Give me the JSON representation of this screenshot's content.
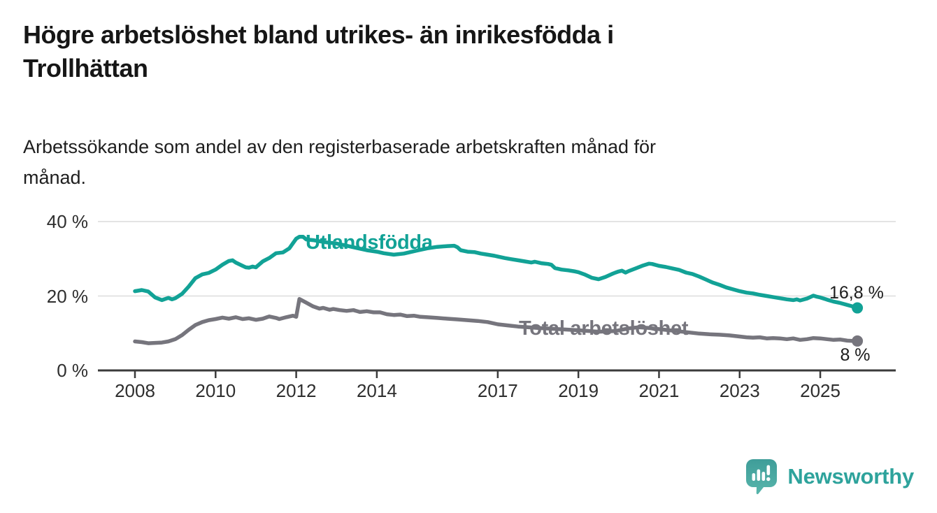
{
  "chart_data": {
    "type": "line",
    "title": "Högre arbetslöshet bland utrikes- än inrikesfödda i\nTrollhättan",
    "subtitle": "Arbetssökande som andel av den registerbaserade arbetskraften månad för\nmånad.",
    "unit": "%",
    "grid": "horizontal-only",
    "legend_position": "inline-labels-on-lines",
    "x_axis": {
      "ticks": [
        2008,
        2010,
        2012,
        2014,
        2017,
        2019,
        2021,
        2023,
        2025
      ],
      "range": [
        2007.1,
        2026.9
      ]
    },
    "y_axis": {
      "range": [
        0,
        42
      ],
      "ticks": [
        {
          "value": 0,
          "label": "0 %"
        },
        {
          "value": 20,
          "label": "20 %"
        },
        {
          "value": 40,
          "label": "40 %"
        }
      ]
    },
    "series": [
      {
        "name": "Utlandsfödda",
        "color": "#12A296",
        "end_label": "16,8 %",
        "points": [
          [
            2008.0,
            21.3
          ],
          [
            2008.17,
            21.6
          ],
          [
            2008.33,
            21.2
          ],
          [
            2008.5,
            19.6
          ],
          [
            2008.67,
            18.9
          ],
          [
            2008.83,
            19.5
          ],
          [
            2008.92,
            19.1
          ],
          [
            2009.0,
            19.4
          ],
          [
            2009.17,
            20.6
          ],
          [
            2009.33,
            22.5
          ],
          [
            2009.5,
            24.8
          ],
          [
            2009.67,
            25.8
          ],
          [
            2009.83,
            26.2
          ],
          [
            2010.0,
            27.1
          ],
          [
            2010.17,
            28.4
          ],
          [
            2010.33,
            29.4
          ],
          [
            2010.42,
            29.6
          ],
          [
            2010.5,
            29.0
          ],
          [
            2010.67,
            28.1
          ],
          [
            2010.75,
            27.7
          ],
          [
            2010.83,
            27.6
          ],
          [
            2010.92,
            27.9
          ],
          [
            2011.0,
            27.7
          ],
          [
            2011.17,
            29.3
          ],
          [
            2011.33,
            30.2
          ],
          [
            2011.5,
            31.5
          ],
          [
            2011.67,
            31.7
          ],
          [
            2011.83,
            32.8
          ],
          [
            2011.92,
            34.2
          ],
          [
            2012.0,
            35.4
          ],
          [
            2012.08,
            35.9
          ],
          [
            2012.17,
            35.9
          ],
          [
            2012.25,
            35.2
          ],
          [
            2012.42,
            35.0
          ],
          [
            2012.58,
            34.7
          ],
          [
            2012.75,
            34.4
          ],
          [
            2013.0,
            34.1
          ],
          [
            2013.25,
            33.5
          ],
          [
            2013.5,
            32.9
          ],
          [
            2013.75,
            32.3
          ],
          [
            2014.0,
            31.9
          ],
          [
            2014.17,
            31.5
          ],
          [
            2014.42,
            31.1
          ],
          [
            2014.67,
            31.4
          ],
          [
            2014.83,
            31.8
          ],
          [
            2015.0,
            32.2
          ],
          [
            2015.25,
            32.8
          ],
          [
            2015.5,
            33.2
          ],
          [
            2015.75,
            33.4
          ],
          [
            2015.92,
            33.5
          ],
          [
            2016.0,
            33.1
          ],
          [
            2016.08,
            32.3
          ],
          [
            2016.25,
            31.9
          ],
          [
            2016.42,
            31.8
          ],
          [
            2016.58,
            31.4
          ],
          [
            2016.75,
            31.1
          ],
          [
            2016.92,
            30.8
          ],
          [
            2017.0,
            30.6
          ],
          [
            2017.17,
            30.2
          ],
          [
            2017.33,
            29.9
          ],
          [
            2017.5,
            29.6
          ],
          [
            2017.67,
            29.3
          ],
          [
            2017.83,
            29.0
          ],
          [
            2017.92,
            29.2
          ],
          [
            2018.08,
            28.8
          ],
          [
            2018.25,
            28.6
          ],
          [
            2018.33,
            28.4
          ],
          [
            2018.42,
            27.5
          ],
          [
            2018.58,
            27.1
          ],
          [
            2018.75,
            26.9
          ],
          [
            2018.92,
            26.6
          ],
          [
            2019.0,
            26.4
          ],
          [
            2019.17,
            25.7
          ],
          [
            2019.33,
            24.9
          ],
          [
            2019.5,
            24.5
          ],
          [
            2019.67,
            25.1
          ],
          [
            2019.83,
            25.9
          ],
          [
            2019.92,
            26.3
          ],
          [
            2020.0,
            26.6
          ],
          [
            2020.08,
            26.8
          ],
          [
            2020.17,
            26.3
          ],
          [
            2020.25,
            26.7
          ],
          [
            2020.42,
            27.4
          ],
          [
            2020.58,
            28.1
          ],
          [
            2020.75,
            28.7
          ],
          [
            2020.83,
            28.6
          ],
          [
            2021.0,
            28.1
          ],
          [
            2021.17,
            27.8
          ],
          [
            2021.33,
            27.4
          ],
          [
            2021.5,
            27.0
          ],
          [
            2021.67,
            26.3
          ],
          [
            2021.83,
            25.9
          ],
          [
            2022.0,
            25.2
          ],
          [
            2022.17,
            24.4
          ],
          [
            2022.33,
            23.6
          ],
          [
            2022.5,
            23.0
          ],
          [
            2022.67,
            22.3
          ],
          [
            2022.83,
            21.8
          ],
          [
            2023.0,
            21.3
          ],
          [
            2023.17,
            20.9
          ],
          [
            2023.33,
            20.7
          ],
          [
            2023.5,
            20.3
          ],
          [
            2023.67,
            20.0
          ],
          [
            2023.83,
            19.7
          ],
          [
            2024.0,
            19.4
          ],
          [
            2024.17,
            19.1
          ],
          [
            2024.33,
            18.9
          ],
          [
            2024.42,
            19.1
          ],
          [
            2024.5,
            18.8
          ],
          [
            2024.67,
            19.3
          ],
          [
            2024.83,
            20.1
          ],
          [
            2024.92,
            19.8
          ],
          [
            2025.0,
            19.6
          ],
          [
            2025.17,
            19.0
          ],
          [
            2025.33,
            18.5
          ],
          [
            2025.5,
            18.1
          ],
          [
            2025.67,
            17.6
          ],
          [
            2025.83,
            17.1
          ],
          [
            2025.92,
            16.8
          ]
        ]
      },
      {
        "name": "Total arbetslöshet",
        "color": "#76757D",
        "end_label": "8 %",
        "points": [
          [
            2008.0,
            7.8
          ],
          [
            2008.17,
            7.6
          ],
          [
            2008.33,
            7.3
          ],
          [
            2008.5,
            7.4
          ],
          [
            2008.67,
            7.5
          ],
          [
            2008.83,
            7.8
          ],
          [
            2009.0,
            8.4
          ],
          [
            2009.17,
            9.5
          ],
          [
            2009.33,
            10.9
          ],
          [
            2009.5,
            12.2
          ],
          [
            2009.67,
            13.0
          ],
          [
            2009.83,
            13.5
          ],
          [
            2010.0,
            13.8
          ],
          [
            2010.17,
            14.2
          ],
          [
            2010.33,
            13.9
          ],
          [
            2010.5,
            14.3
          ],
          [
            2010.67,
            13.8
          ],
          [
            2010.83,
            14.0
          ],
          [
            2011.0,
            13.6
          ],
          [
            2011.17,
            13.9
          ],
          [
            2011.33,
            14.5
          ],
          [
            2011.5,
            14.1
          ],
          [
            2011.58,
            13.8
          ],
          [
            2011.75,
            14.3
          ],
          [
            2011.92,
            14.7
          ],
          [
            2012.0,
            14.4
          ],
          [
            2012.08,
            19.2
          ],
          [
            2012.25,
            18.2
          ],
          [
            2012.42,
            17.2
          ],
          [
            2012.58,
            16.6
          ],
          [
            2012.67,
            16.8
          ],
          [
            2012.83,
            16.3
          ],
          [
            2012.92,
            16.5
          ],
          [
            2013.08,
            16.2
          ],
          [
            2013.25,
            16.0
          ],
          [
            2013.42,
            16.2
          ],
          [
            2013.58,
            15.7
          ],
          [
            2013.75,
            15.9
          ],
          [
            2013.92,
            15.6
          ],
          [
            2014.08,
            15.6
          ],
          [
            2014.25,
            15.1
          ],
          [
            2014.42,
            14.9
          ],
          [
            2014.58,
            15.0
          ],
          [
            2014.75,
            14.6
          ],
          [
            2014.92,
            14.7
          ],
          [
            2015.08,
            14.4
          ],
          [
            2015.25,
            14.3
          ],
          [
            2015.5,
            14.1
          ],
          [
            2015.75,
            13.9
          ],
          [
            2016.0,
            13.7
          ],
          [
            2016.25,
            13.5
          ],
          [
            2016.5,
            13.3
          ],
          [
            2016.75,
            13.0
          ],
          [
            2017.0,
            12.4
          ],
          [
            2017.25,
            12.1
          ],
          [
            2017.5,
            11.8
          ],
          [
            2017.75,
            11.6
          ],
          [
            2018.0,
            11.4
          ],
          [
            2018.5,
            11.1
          ],
          [
            2019.0,
            10.8
          ],
          [
            2019.5,
            10.4
          ],
          [
            2019.92,
            10.6
          ],
          [
            2020.25,
            11.3
          ],
          [
            2020.5,
            11.6
          ],
          [
            2020.75,
            11.4
          ],
          [
            2021.0,
            11.1
          ],
          [
            2021.33,
            10.7
          ],
          [
            2021.67,
            10.3
          ],
          [
            2022.0,
            9.9
          ],
          [
            2022.25,
            9.7
          ],
          [
            2022.5,
            9.6
          ],
          [
            2022.75,
            9.4
          ],
          [
            2023.0,
            9.1
          ],
          [
            2023.17,
            8.9
          ],
          [
            2023.33,
            8.8
          ],
          [
            2023.5,
            8.9
          ],
          [
            2023.67,
            8.6
          ],
          [
            2023.83,
            8.7
          ],
          [
            2024.0,
            8.6
          ],
          [
            2024.17,
            8.4
          ],
          [
            2024.33,
            8.6
          ],
          [
            2024.5,
            8.2
          ],
          [
            2024.67,
            8.4
          ],
          [
            2024.83,
            8.7
          ],
          [
            2025.0,
            8.6
          ],
          [
            2025.17,
            8.4
          ],
          [
            2025.33,
            8.2
          ],
          [
            2025.5,
            8.3
          ],
          [
            2025.67,
            8.0
          ],
          [
            2025.83,
            7.9
          ],
          [
            2025.92,
            7.9
          ]
        ]
      }
    ],
    "style": {
      "grid_color": "#DCDCDC",
      "axis_color": "#3B3B3B",
      "text_color": "#2E2E2E"
    }
  },
  "branding": {
    "name": "Newsworthy",
    "color": "#2EA39C",
    "icon": "newsworthy-bubble-chart-icon"
  }
}
